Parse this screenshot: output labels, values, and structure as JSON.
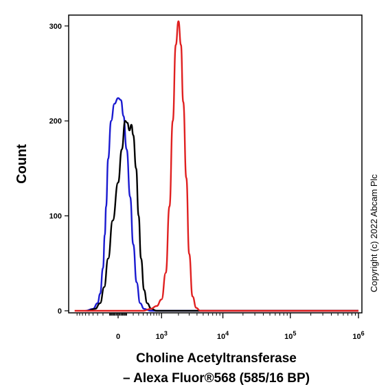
{
  "chart_data": {
    "type": "line",
    "title": "",
    "ylabel": "Count",
    "xlabel_line1": "Choline Acetyltransferase",
    "xlabel_line2": "– Alexa Fluor®568 (585/16 BP)",
    "copyright": "Copyright (c) 2022 Abcam Plc",
    "ylim": [
      0,
      310
    ],
    "y_ticks": [
      {
        "value": 0,
        "label": "0"
      },
      {
        "value": 100,
        "label": "100"
      },
      {
        "value": 200,
        "label": "200"
      },
      {
        "value": 300,
        "label": "300"
      }
    ],
    "x_scale": "biexponential",
    "x_ticks": [
      {
        "value": 0,
        "label": "0"
      },
      {
        "value": 1000,
        "label": "10",
        "exp": "3"
      },
      {
        "value": 10000,
        "label": "10",
        "exp": "4"
      },
      {
        "value": 100000,
        "label": "10",
        "exp": "5"
      },
      {
        "value": 1000000,
        "label": "10",
        "exp": "6"
      }
    ],
    "grid": false,
    "legend": "none",
    "series": [
      {
        "color": "#1a1ad0",
        "points": [
          [
            -600,
            0
          ],
          [
            -400,
            2
          ],
          [
            -300,
            8
          ],
          [
            -250,
            18
          ],
          [
            -200,
            45
          ],
          [
            -170,
            80
          ],
          [
            -150,
            110
          ],
          [
            -120,
            160
          ],
          [
            -80,
            200
          ],
          [
            -40,
            218
          ],
          [
            0,
            224
          ],
          [
            30,
            222
          ],
          [
            60,
            205
          ],
          [
            100,
            170
          ],
          [
            150,
            120
          ],
          [
            200,
            70
          ],
          [
            260,
            30
          ],
          [
            330,
            8
          ],
          [
            420,
            2
          ],
          [
            600,
            0
          ],
          [
            1000000,
            0
          ]
        ]
      },
      {
        "color": "#000000",
        "points": [
          [
            -550,
            0
          ],
          [
            -350,
            2
          ],
          [
            -250,
            8
          ],
          [
            -180,
            25
          ],
          [
            -120,
            55
          ],
          [
            -60,
            95
          ],
          [
            0,
            135
          ],
          [
            40,
            170
          ],
          [
            80,
            200
          ],
          [
            110,
            198
          ],
          [
            140,
            190
          ],
          [
            170,
            196
          ],
          [
            200,
            185
          ],
          [
            250,
            150
          ],
          [
            300,
            100
          ],
          [
            350,
            55
          ],
          [
            420,
            22
          ],
          [
            500,
            8
          ],
          [
            620,
            2
          ],
          [
            800,
            0
          ],
          [
            1000000,
            0
          ]
        ]
      },
      {
        "color": "#e02020",
        "points": [
          [
            -1000,
            0
          ],
          [
            400,
            0
          ],
          [
            600,
            2
          ],
          [
            800,
            5
          ],
          [
            1000,
            12
          ],
          [
            1200,
            40
          ],
          [
            1400,
            110
          ],
          [
            1600,
            200
          ],
          [
            1800,
            280
          ],
          [
            2000,
            305
          ],
          [
            2200,
            280
          ],
          [
            2400,
            220
          ],
          [
            2700,
            140
          ],
          [
            3000,
            60
          ],
          [
            3400,
            15
          ],
          [
            3900,
            3
          ],
          [
            4500,
            0
          ],
          [
            1000000,
            0
          ]
        ]
      }
    ]
  }
}
